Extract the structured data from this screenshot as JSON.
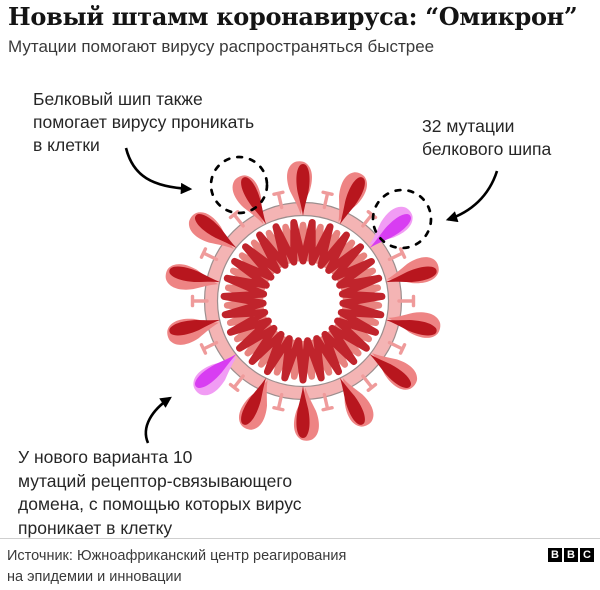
{
  "header": {
    "title": "Новый штамм коронавируса: “Омикрон”",
    "subtitle": "Мутации помогают вирусу распространяться быстрее"
  },
  "annotations": {
    "spike_protein": "Белковый шип также\nпомогает вирусу проникать\nв клетки",
    "spike_mutations": "32 мутации\nбелкового шипа",
    "rbd_mutations": "У нового варианта 10\nмутаций рецептор-связывающего\nдомена, с помощью которых вирус\nпроникает в клетку"
  },
  "footer": {
    "source": "Источник: Южноафриканский центр реагирования\nна эпидемии и инновации",
    "logo_letters": [
      "B",
      "B",
      "C"
    ]
  },
  "diagram": {
    "subject": "coronavirus-omicron-variant",
    "spike_count": 14,
    "mutated_spike_indices": [
      2,
      9
    ],
    "colors": {
      "spike_dark": "#b8161e",
      "spike_light": "#ee8484",
      "mutation": "#d83df2",
      "mutation_light": "#f19cf4",
      "membrane": "#f4b4b4",
      "membrane_edge": "#9c8e8e",
      "coil_dark": "#c0242c",
      "coil_light": "#e8837f",
      "peg": "#ef9b9b",
      "annotation_ink": "#000000"
    }
  }
}
